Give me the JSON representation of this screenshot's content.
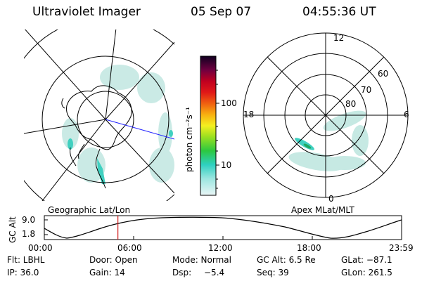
{
  "header": {
    "title": "Ultraviolet Imager",
    "date": "05 Sep 07",
    "time": "04:55:36 UT"
  },
  "colorbar": {
    "label": "photon cm⁻²s⁻¹",
    "ticks": [
      "100",
      "10"
    ]
  },
  "left_map": {
    "caption": "Geographic Lat/Lon"
  },
  "right_map": {
    "caption": "Apex MLat/MLT",
    "mlt_labels": {
      "top": "12",
      "left": "18",
      "right": "6",
      "bottom": "0"
    },
    "lat_labels": [
      "60",
      "70",
      "80"
    ]
  },
  "altitude_plot": {
    "ylabel": "GC Alt",
    "yticks": [
      "9.0",
      "1.8"
    ],
    "xticks": [
      "00:00",
      "06:00",
      "12:00",
      "18:00",
      "23:59"
    ],
    "marker_fraction": 0.206
  },
  "info": {
    "filter": "Flt: LBHL",
    "door": "Door: Open",
    "mode": "Mode: Normal",
    "gc_alt": "GC Alt: 6.5 Re",
    "glat": "GLat: −87.1",
    "ip": "IP: 36.0",
    "gain": "Gain: 14",
    "dsp_label": "Dsp:",
    "dsp_value": "−5.4",
    "seq": "Seq: 39",
    "glon": "GLon: 261.5"
  },
  "colors": {
    "background": "#ffffff",
    "ink": "#000000",
    "marker": "#d01818",
    "meridian": "#2020ff",
    "aurora": "#40d0c0"
  }
}
